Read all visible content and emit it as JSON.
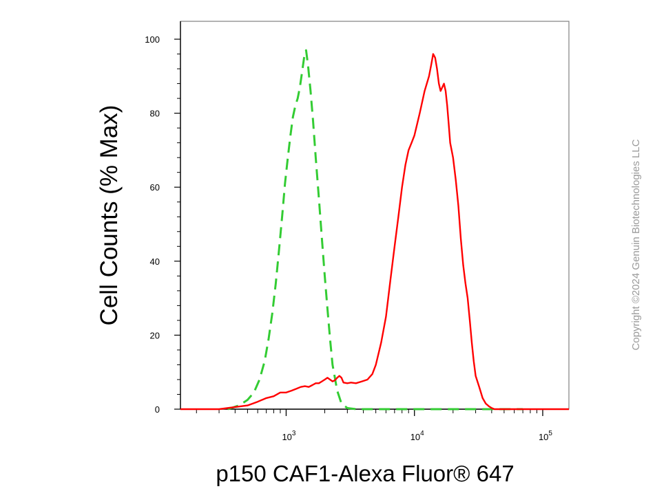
{
  "chart_data": {
    "type": "line",
    "title": "",
    "xlabel": "p150 CAF1-Alexa Fluor® 647",
    "ylabel": "Cell Counts (% Max)",
    "x_scale": "log",
    "xlim": [
      150,
      160000
    ],
    "ylim": [
      0,
      100
    ],
    "y_ticks": [
      "0",
      "20",
      "40",
      "60",
      "80",
      "100"
    ],
    "x_ticks": [
      {
        "base": "10",
        "exp": "3",
        "value": 1000
      },
      {
        "base": "10",
        "exp": "4",
        "value": 10000
      },
      {
        "base": "10",
        "exp": "5",
        "value": 100000
      }
    ],
    "grid": false,
    "legend": "none",
    "series": [
      {
        "color": "#33cc33",
        "style": "dashed",
        "x": [
          350,
          430,
          500,
          560,
          620,
          680,
          730,
          780,
          830,
          880,
          930,
          980,
          1030,
          1080,
          1130,
          1180,
          1230,
          1280,
          1330,
          1380,
          1430,
          1480,
          1550,
          1620,
          1700,
          1800,
          1900,
          2000,
          2100,
          2200,
          2300,
          2500,
          2700,
          3000,
          3500,
          5000,
          10000,
          30000,
          70000
        ],
        "y": [
          0,
          1,
          2.5,
          4.5,
          8,
          13,
          19,
          26,
          34,
          43,
          52,
          61,
          68,
          74,
          79,
          82,
          84,
          87,
          91,
          95,
          97,
          93,
          86,
          78,
          68,
          57,
          46,
          36,
          27,
          19,
          12,
          5,
          1.5,
          0.3,
          0,
          0,
          0,
          0,
          0
        ]
      },
      {
        "color": "#ff0000",
        "style": "solid",
        "x": [
          150,
          300,
          500,
          600,
          700,
          800,
          900,
          1000,
          1100,
          1200,
          1300,
          1400,
          1500,
          1600,
          1700,
          1800,
          1900,
          2000,
          2100,
          2200,
          2300,
          2400,
          2500,
          2600,
          2700,
          2800,
          3000,
          3200,
          3500,
          3900,
          4300,
          4700,
          5000,
          5500,
          6000,
          6500,
          7000,
          7500,
          8000,
          8500,
          9000,
          9500,
          10000,
          11000,
          12000,
          13000,
          13500,
          14000,
          14500,
          15000,
          15500,
          16000,
          16500,
          17000,
          17500,
          18000,
          18500,
          19000,
          20000,
          21000,
          22000,
          23000,
          24000,
          25000,
          26000,
          27000,
          28000,
          29000,
          30000,
          32000,
          34000,
          36000,
          38000,
          40000,
          42000,
          44000,
          46000,
          48000,
          50000,
          55000,
          60000,
          160000
        ],
        "y": [
          0,
          0,
          1,
          2,
          3,
          3.5,
          4.5,
          4.5,
          5,
          5.5,
          6,
          6.2,
          6,
          6.5,
          7,
          7,
          7.5,
          8,
          8.5,
          8,
          7.5,
          7.8,
          8.5,
          9,
          8.5,
          7.2,
          7,
          7.2,
          7,
          7.5,
          8,
          9.5,
          12,
          18,
          25,
          35,
          44,
          52,
          60,
          66,
          70,
          72,
          74,
          80,
          86,
          90,
          93,
          96,
          95,
          92,
          88,
          86,
          87,
          88,
          86,
          82,
          77,
          72,
          68,
          62,
          55,
          46,
          39,
          34,
          30,
          24,
          18,
          13,
          9,
          6,
          3,
          1.5,
          0.8,
          0.3,
          0,
          0,
          0,
          0,
          0,
          0,
          0,
          0
        ]
      }
    ]
  },
  "watermark": {
    "text": "Copyright ©2024 Genuin Biotechnologies LLC"
  }
}
